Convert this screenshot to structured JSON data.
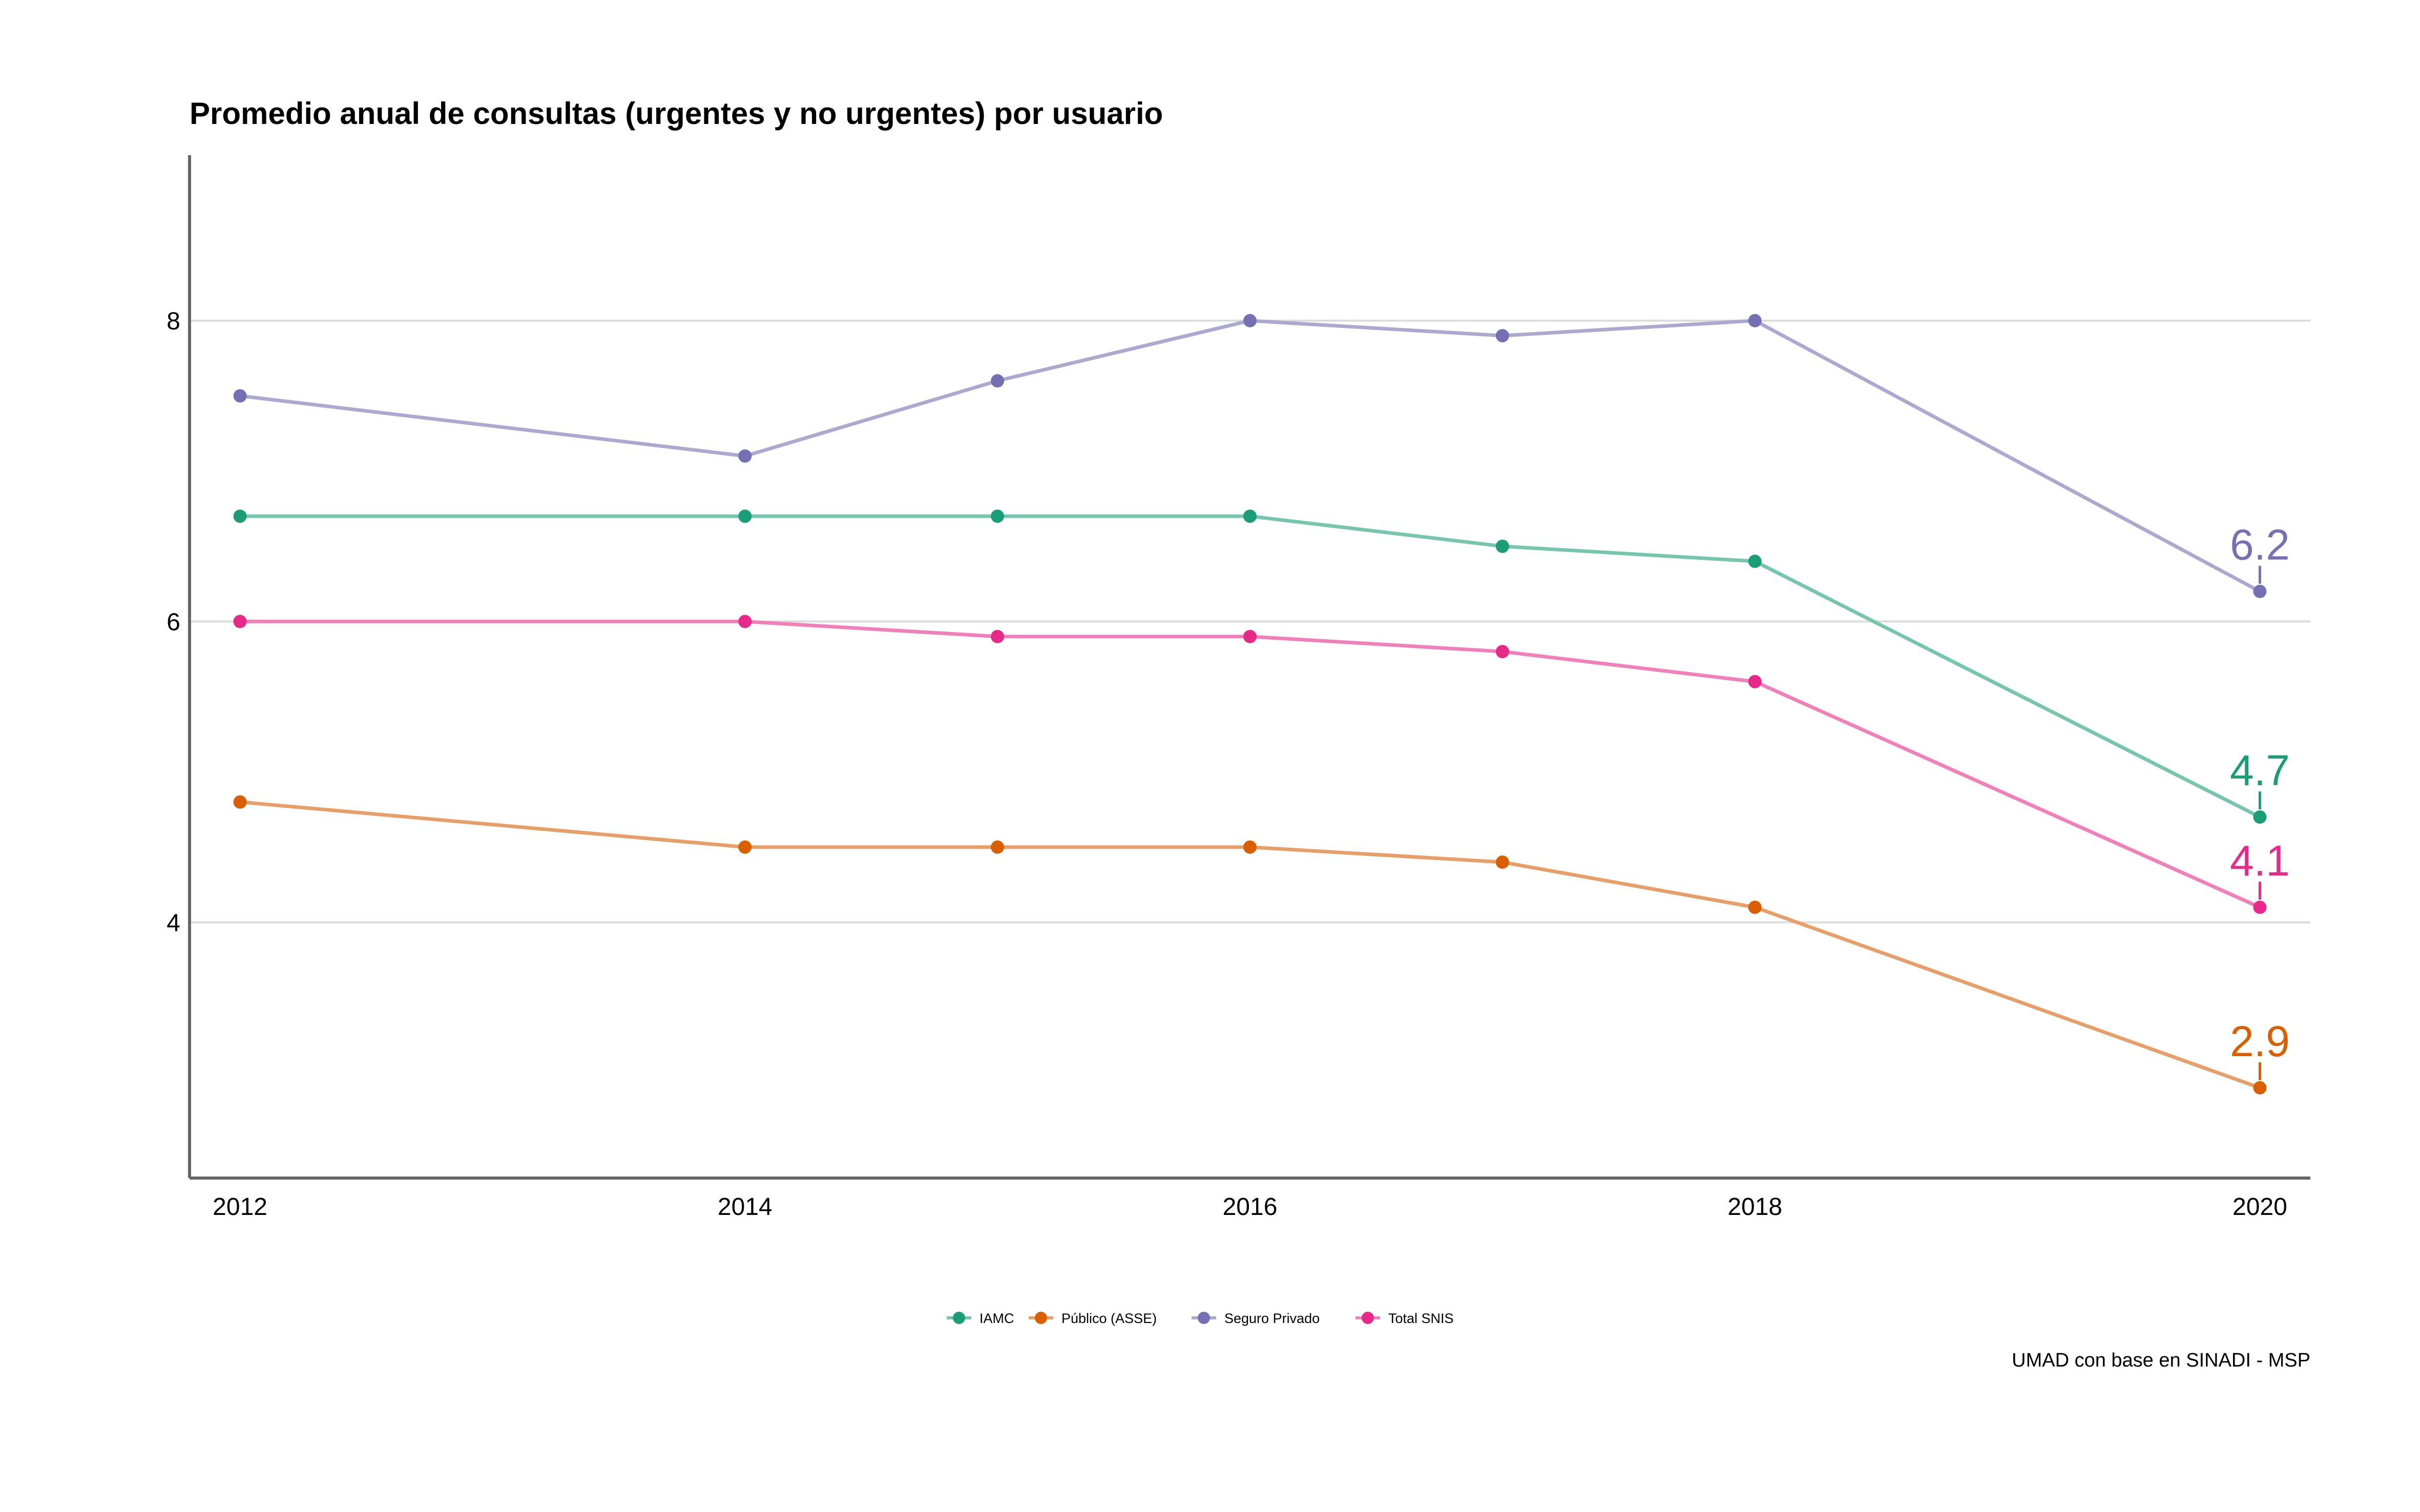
{
  "chart_data": {
    "type": "line",
    "title": "Promedio anual de consultas (urgentes y no urgentes) por usuario",
    "caption": "UMAD con base en SINADI - MSP",
    "xlabel": "",
    "ylabel": "",
    "x": [
      2012,
      2014,
      2015,
      2016,
      2017,
      2018,
      2020
    ],
    "x_ticks": [
      "2012",
      "2014",
      "2016",
      "2018",
      "2020"
    ],
    "y_ticks": [
      "4",
      "6",
      "8"
    ],
    "xlim": [
      2011.8,
      2020.2
    ],
    "ylim": [
      2.3,
      9.1
    ],
    "grid": "horizontal major",
    "legend_position": "bottom",
    "series": [
      {
        "name": "IAMC",
        "color": "#1B9E77",
        "values": [
          6.7,
          6.7,
          6.7,
          6.7,
          6.5,
          6.4,
          4.7
        ],
        "end_label": "4.7"
      },
      {
        "name": "Público (ASSE)",
        "color": "#D95F02",
        "values": [
          4.8,
          4.5,
          4.5,
          4.5,
          4.4,
          4.1,
          2.9
        ],
        "end_label": "2.9"
      },
      {
        "name": "Seguro Privado",
        "color": "#7570B3",
        "values": [
          7.5,
          7.1,
          7.6,
          8.0,
          7.9,
          8.0,
          6.2
        ],
        "end_label": "6.2"
      },
      {
        "name": "Total SNIS",
        "color": "#E7298A",
        "values": [
          6.0,
          6.0,
          5.9,
          5.9,
          5.8,
          5.6,
          4.1
        ],
        "end_label": "4.1"
      }
    ]
  }
}
